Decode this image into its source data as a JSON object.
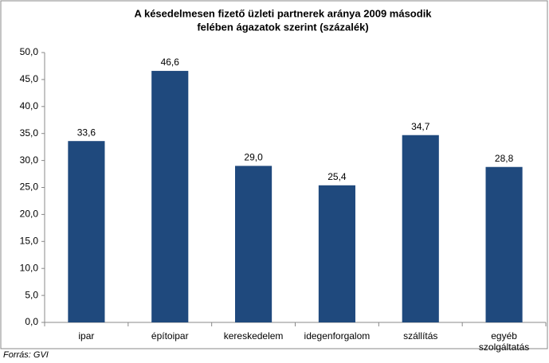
{
  "chart_data": {
    "type": "bar",
    "title": [
      "A késedelmesen fizető üzleti partnerek aránya 2009 második",
      "felében ágazatok szerint (százalék)"
    ],
    "categories": [
      "ipar",
      "építoipar",
      "kereskedelem",
      "idegenforgalom",
      "szállítás",
      "egyéb szolgáltatás"
    ],
    "values": [
      33.6,
      46.6,
      29.0,
      25.4,
      34.7,
      28.8
    ],
    "value_labels": [
      "33,6",
      "46,6",
      "29,0",
      "25,4",
      "34,7",
      "28,8"
    ],
    "color": "#1f497d",
    "ylim": [
      0,
      50
    ],
    "yticks": [
      {
        "value": 0,
        "label": "0,0"
      },
      {
        "value": 5,
        "label": "5,0"
      },
      {
        "value": 10,
        "label": "10,0"
      },
      {
        "value": 15,
        "label": "15,0"
      },
      {
        "value": 20,
        "label": "20,0"
      },
      {
        "value": 25,
        "label": "25,0"
      },
      {
        "value": 30,
        "label": "30,0"
      },
      {
        "value": 35,
        "label": "35,0"
      },
      {
        "value": 40,
        "label": "40,0"
      },
      {
        "value": 45,
        "label": "45,0"
      },
      {
        "value": 50,
        "label": "50,0"
      }
    ],
    "grid": false,
    "source": "Forrás: GVI"
  }
}
